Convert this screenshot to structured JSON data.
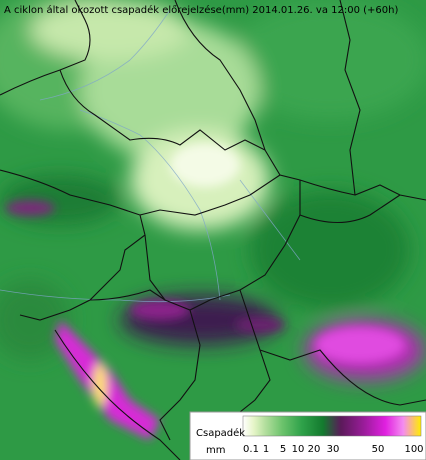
{
  "title": "A ciklon által okozott csapadék előrejelzése(mm) 2014.01.26. va 12:00 (+60h)",
  "legend": {
    "title": "Csapadék",
    "unit": "mm",
    "labels": [
      "0.1",
      "1",
      "5",
      "10",
      "20",
      "30",
      "50",
      "100"
    ]
  }
}
